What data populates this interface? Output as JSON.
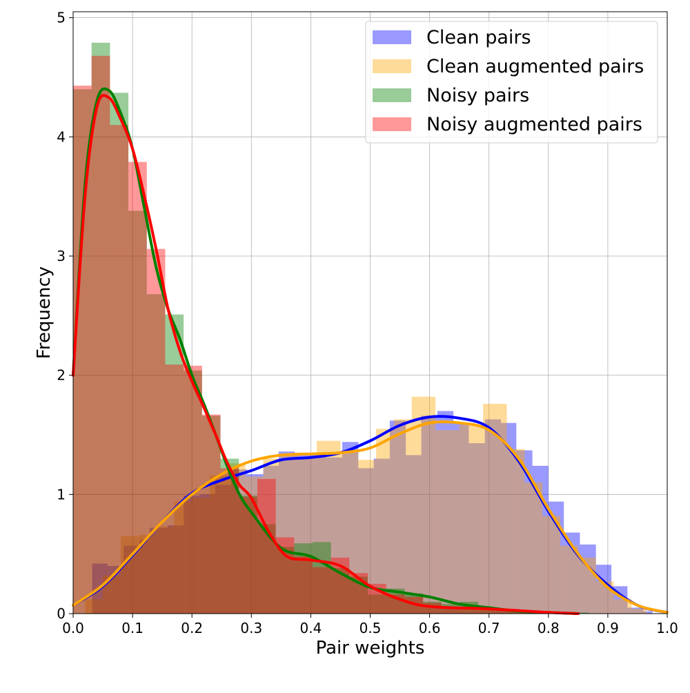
{
  "chart_data": {
    "type": "histogram",
    "title": "",
    "xlabel": "Pair weights",
    "ylabel": "Frequency",
    "xlim": [
      0.0,
      1.0
    ],
    "ylim": [
      0,
      5.05
    ],
    "xticks": [
      "0.0",
      "0.1",
      "0.2",
      "0.3",
      "0.4",
      "0.5",
      "0.6",
      "0.7",
      "0.8",
      "0.9",
      "1.0"
    ],
    "yticks": [
      "0",
      "1",
      "2",
      "3",
      "4",
      "5"
    ],
    "grid": true,
    "legend_position": "top-right",
    "series": [
      {
        "name": "Clean pairs",
        "hist_color": "#0000ff",
        "hist_opacity": 0.4,
        "kde_color": "#0000ff",
        "bins": [
          [
            0.032,
            0.058,
            0.42
          ],
          [
            0.058,
            0.085,
            0.4
          ],
          [
            0.085,
            0.112,
            0.57
          ],
          [
            0.112,
            0.129,
            0.62
          ],
          [
            0.129,
            0.159,
            0.72
          ],
          [
            0.159,
            0.186,
            0.74
          ],
          [
            0.186,
            0.213,
            0.99
          ],
          [
            0.213,
            0.239,
            1.0
          ],
          [
            0.239,
            0.266,
            1.08
          ],
          [
            0.266,
            0.293,
            1.21
          ],
          [
            0.293,
            0.32,
            1.17
          ],
          [
            0.32,
            0.346,
            1.24
          ],
          [
            0.346,
            0.373,
            1.36
          ],
          [
            0.373,
            0.4,
            1.35
          ],
          [
            0.4,
            0.426,
            1.33
          ],
          [
            0.426,
            0.453,
            1.31
          ],
          [
            0.453,
            0.48,
            1.44
          ],
          [
            0.48,
            0.506,
            1.22
          ],
          [
            0.506,
            0.533,
            1.3
          ],
          [
            0.533,
            0.56,
            1.62
          ],
          [
            0.56,
            0.586,
            1.33
          ],
          [
            0.586,
            0.613,
            1.66
          ],
          [
            0.613,
            0.64,
            1.7
          ],
          [
            0.64,
            0.666,
            1.6
          ],
          [
            0.666,
            0.693,
            1.43
          ],
          [
            0.693,
            0.72,
            1.63
          ],
          [
            0.72,
            0.746,
            1.6
          ],
          [
            0.746,
            0.773,
            1.37
          ],
          [
            0.773,
            0.8,
            1.24
          ],
          [
            0.8,
            0.826,
            0.94
          ],
          [
            0.826,
            0.853,
            0.68
          ],
          [
            0.853,
            0.88,
            0.58
          ],
          [
            0.88,
            0.906,
            0.41
          ],
          [
            0.906,
            0.933,
            0.23
          ],
          [
            0.933,
            0.96,
            0.05
          ],
          [
            0.96,
            0.975,
            0.02
          ]
        ],
        "kde_x": [
          0.0,
          0.05,
          0.1,
          0.15,
          0.2,
          0.25,
          0.3,
          0.35,
          0.4,
          0.45,
          0.5,
          0.55,
          0.6,
          0.65,
          0.7,
          0.75,
          0.8,
          0.85,
          0.9,
          0.95,
          1.0
        ],
        "kde_y": [
          0.07,
          0.23,
          0.49,
          0.77,
          1.01,
          1.12,
          1.2,
          1.29,
          1.31,
          1.35,
          1.45,
          1.58,
          1.65,
          1.64,
          1.56,
          1.28,
          0.86,
          0.49,
          0.24,
          0.07,
          0.01
        ]
      },
      {
        "name": "Clean augmented pairs",
        "hist_color": "#ffa500",
        "hist_opacity": 0.4,
        "kde_color": "#ffa500",
        "bins": [
          [
            0.02,
            0.05,
            0.12
          ],
          [
            0.05,
            0.08,
            0.32
          ],
          [
            0.08,
            0.11,
            0.65
          ],
          [
            0.11,
            0.14,
            0.66
          ],
          [
            0.14,
            0.17,
            0.73
          ],
          [
            0.17,
            0.2,
            0.94
          ],
          [
            0.2,
            0.23,
            0.97
          ],
          [
            0.23,
            0.26,
            1.16
          ],
          [
            0.26,
            0.29,
            1.26
          ],
          [
            0.29,
            0.32,
            1.15
          ],
          [
            0.32,
            0.35,
            1.3
          ],
          [
            0.35,
            0.38,
            1.34
          ],
          [
            0.38,
            0.41,
            1.31
          ],
          [
            0.41,
            0.45,
            1.45
          ],
          [
            0.45,
            0.48,
            1.35
          ],
          [
            0.48,
            0.51,
            1.29
          ],
          [
            0.51,
            0.54,
            1.55
          ],
          [
            0.54,
            0.57,
            1.63
          ],
          [
            0.57,
            0.61,
            1.82
          ],
          [
            0.61,
            0.65,
            1.54
          ],
          [
            0.65,
            0.69,
            1.58
          ],
          [
            0.69,
            0.73,
            1.76
          ],
          [
            0.73,
            0.76,
            1.38
          ],
          [
            0.76,
            0.79,
            1.1
          ],
          [
            0.79,
            0.82,
            0.82
          ],
          [
            0.82,
            0.85,
            0.57
          ],
          [
            0.85,
            0.88,
            0.47
          ],
          [
            0.88,
            0.91,
            0.27
          ],
          [
            0.91,
            0.94,
            0.12
          ],
          [
            0.94,
            0.965,
            0.04
          ]
        ],
        "kde_x": [
          0.0,
          0.05,
          0.1,
          0.15,
          0.2,
          0.25,
          0.3,
          0.35,
          0.4,
          0.45,
          0.5,
          0.55,
          0.6,
          0.65,
          0.7,
          0.75,
          0.8,
          0.85,
          0.9,
          0.95,
          1.0
        ],
        "kde_y": [
          0.07,
          0.24,
          0.5,
          0.77,
          1.0,
          1.17,
          1.28,
          1.33,
          1.34,
          1.35,
          1.39,
          1.51,
          1.6,
          1.6,
          1.54,
          1.3,
          0.88,
          0.5,
          0.22,
          0.07,
          0.01
        ]
      },
      {
        "name": "Noisy pairs",
        "hist_color": "#008000",
        "hist_opacity": 0.4,
        "kde_color": "#008000",
        "bins": [
          [
            0.0,
            0.031,
            4.4
          ],
          [
            0.031,
            0.062,
            4.79
          ],
          [
            0.062,
            0.093,
            4.37
          ],
          [
            0.093,
            0.124,
            3.38
          ],
          [
            0.124,
            0.155,
            2.68
          ],
          [
            0.155,
            0.186,
            2.51
          ],
          [
            0.186,
            0.217,
            2.04
          ],
          [
            0.217,
            0.248,
            1.66
          ],
          [
            0.248,
            0.279,
            1.3
          ],
          [
            0.279,
            0.31,
            0.99
          ],
          [
            0.31,
            0.341,
            0.75
          ],
          [
            0.341,
            0.372,
            0.56
          ],
          [
            0.372,
            0.403,
            0.59
          ],
          [
            0.403,
            0.434,
            0.6
          ],
          [
            0.434,
            0.465,
            0.38
          ],
          [
            0.465,
            0.496,
            0.31
          ],
          [
            0.496,
            0.527,
            0.16
          ],
          [
            0.527,
            0.558,
            0.21
          ],
          [
            0.558,
            0.589,
            0.17
          ],
          [
            0.589,
            0.62,
            0.1
          ],
          [
            0.62,
            0.651,
            0.08
          ],
          [
            0.651,
            0.682,
            0.1
          ],
          [
            0.682,
            0.713,
            0.04
          ],
          [
            0.713,
            0.744,
            0.03
          ],
          [
            0.744,
            0.775,
            0.02
          ],
          [
            0.775,
            0.806,
            0.01
          ],
          [
            0.806,
            0.837,
            0.01
          ],
          [
            0.837,
            0.868,
            0.01
          ]
        ],
        "kde_x": [
          0.0,
          0.02,
          0.04,
          0.06,
          0.08,
          0.1,
          0.12,
          0.14,
          0.16,
          0.18,
          0.2,
          0.22,
          0.24,
          0.26,
          0.28,
          0.3,
          0.35,
          0.4,
          0.45,
          0.5,
          0.55,
          0.6,
          0.65,
          0.7,
          0.75,
          0.8,
          0.85
        ],
        "kde_y": [
          2.0,
          3.6,
          4.3,
          4.39,
          4.2,
          3.9,
          3.4,
          2.9,
          2.55,
          2.3,
          2.0,
          1.76,
          1.5,
          1.23,
          1.0,
          0.85,
          0.55,
          0.48,
          0.34,
          0.22,
          0.18,
          0.14,
          0.08,
          0.05,
          0.02,
          0.01,
          0.0
        ]
      },
      {
        "name": "Noisy augmented pairs",
        "hist_color": "#ff0000",
        "hist_opacity": 0.4,
        "kde_color": "#ff0000",
        "bins": [
          [
            0.0,
            0.031,
            4.43
          ],
          [
            0.031,
            0.062,
            4.68
          ],
          [
            0.062,
            0.093,
            4.1
          ],
          [
            0.093,
            0.124,
            3.79
          ],
          [
            0.124,
            0.155,
            3.06
          ],
          [
            0.155,
            0.186,
            2.09
          ],
          [
            0.186,
            0.217,
            2.08
          ],
          [
            0.217,
            0.248,
            1.67
          ],
          [
            0.248,
            0.279,
            1.22
          ],
          [
            0.279,
            0.31,
            0.98
          ],
          [
            0.31,
            0.341,
            1.13
          ],
          [
            0.341,
            0.372,
            0.64
          ],
          [
            0.372,
            0.403,
            0.48
          ],
          [
            0.403,
            0.434,
            0.39
          ],
          [
            0.434,
            0.465,
            0.47
          ],
          [
            0.465,
            0.496,
            0.34
          ],
          [
            0.496,
            0.527,
            0.25
          ],
          [
            0.527,
            0.558,
            0.16
          ],
          [
            0.558,
            0.589,
            0.14
          ],
          [
            0.589,
            0.62,
            0.09
          ],
          [
            0.62,
            0.651,
            0.06
          ],
          [
            0.651,
            0.682,
            0.05
          ],
          [
            0.682,
            0.713,
            0.04
          ],
          [
            0.713,
            0.744,
            0.03
          ],
          [
            0.744,
            0.775,
            0.02
          ],
          [
            0.775,
            0.806,
            0.01
          ]
        ],
        "kde_x": [
          0.0,
          0.02,
          0.04,
          0.06,
          0.08,
          0.1,
          0.12,
          0.14,
          0.16,
          0.18,
          0.2,
          0.22,
          0.24,
          0.26,
          0.28,
          0.3,
          0.33,
          0.36,
          0.4,
          0.45,
          0.5,
          0.55,
          0.6,
          0.7,
          0.8,
          0.85
        ],
        "kde_y": [
          2.0,
          3.5,
          4.25,
          4.33,
          4.15,
          3.9,
          3.5,
          3.05,
          2.55,
          2.2,
          1.95,
          1.73,
          1.5,
          1.26,
          1.08,
          0.97,
          0.68,
          0.48,
          0.45,
          0.4,
          0.23,
          0.12,
          0.06,
          0.04,
          0.01,
          0.0
        ]
      }
    ]
  }
}
